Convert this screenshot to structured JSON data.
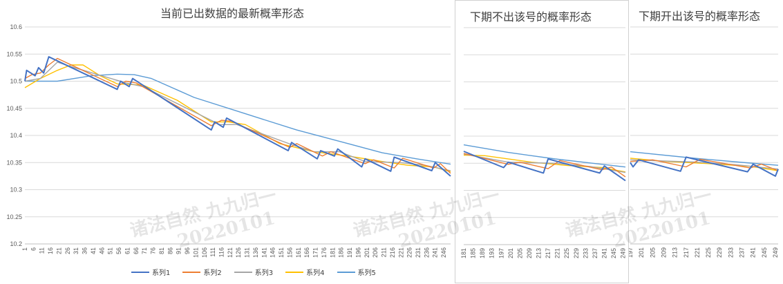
{
  "colors": {
    "series": [
      "#4472C4",
      "#ED7D31",
      "#A5A5A5",
      "#FFC000",
      "#5B9BD5"
    ],
    "grid": "#d9d9d9",
    "axis": "#bfbfbf"
  },
  "panels": [
    {
      "title": "当前已出数据的最新概率形态"
    },
    {
      "title": "下期不出该号的概率形态"
    },
    {
      "title": "下期开出该号的概率形态"
    }
  ],
  "watermark": {
    "text1": "诸法自然 九九归一",
    "text2": "20220101"
  },
  "chart_data": [
    {
      "type": "line",
      "title": "当前已出数据的最新概率形态",
      "ylim": [
        10.2,
        10.6
      ],
      "yticks": [
        10.2,
        10.25,
        10.3,
        10.35,
        10.4,
        10.45,
        10.5,
        10.55,
        10.6
      ],
      "xlim": [
        1,
        250
      ],
      "xticks": [
        1,
        6,
        11,
        16,
        21,
        26,
        31,
        36,
        41,
        46,
        51,
        56,
        61,
        66,
        71,
        76,
        81,
        86,
        91,
        96,
        101,
        106,
        111,
        116,
        121,
        126,
        131,
        136,
        141,
        146,
        151,
        156,
        161,
        166,
        171,
        176,
        181,
        186,
        191,
        196,
        201,
        206,
        211,
        216,
        221,
        226,
        231,
        236,
        241,
        246
      ],
      "legend": [
        "系列1",
        "系列2",
        "系列3",
        "系列4",
        "系列5"
      ],
      "series": [
        {
          "name": "系列1",
          "points": [
            [
              1,
              10.5
            ],
            [
              2,
              10.52
            ],
            [
              7,
              10.51
            ],
            [
              9,
              10.525
            ],
            [
              12,
              10.515
            ],
            [
              15,
              10.545
            ],
            [
              55,
              10.485
            ],
            [
              57,
              10.5
            ],
            [
              62,
              10.49
            ],
            [
              64,
              10.505
            ],
            [
              110,
              10.41
            ],
            [
              112,
              10.425
            ],
            [
              117,
              10.415
            ],
            [
              119,
              10.432
            ],
            [
              155,
              10.372
            ],
            [
              157,
              10.387
            ],
            [
              172,
              10.357
            ],
            [
              174,
              10.372
            ],
            [
              182,
              10.362
            ],
            [
              184,
              10.375
            ],
            [
              198,
              10.342
            ],
            [
              200,
              10.357
            ],
            [
              215,
              10.334
            ],
            [
              217,
              10.36
            ],
            [
              239,
              10.335
            ],
            [
              241,
              10.35
            ],
            [
              250,
              10.325
            ]
          ]
        },
        {
          "name": "系列2",
          "points": [
            [
              1,
              10.505
            ],
            [
              5,
              10.512
            ],
            [
              10,
              10.515
            ],
            [
              15,
              10.53
            ],
            [
              20,
              10.542
            ],
            [
              55,
              10.49
            ],
            [
              60,
              10.5
            ],
            [
              66,
              10.497
            ],
            [
              110,
              10.418
            ],
            [
              116,
              10.428
            ],
            [
              122,
              10.426
            ],
            [
              156,
              10.378
            ],
            [
              160,
              10.385
            ],
            [
              175,
              10.362
            ],
            [
              180,
              10.37
            ],
            [
              200,
              10.348
            ],
            [
              205,
              10.355
            ],
            [
              217,
              10.34
            ],
            [
              222,
              10.358
            ],
            [
              240,
              10.34
            ],
            [
              244,
              10.348
            ],
            [
              250,
              10.33
            ]
          ]
        },
        {
          "name": "系列3",
          "points": [
            [
              1,
              10.5
            ],
            [
              10,
              10.505
            ],
            [
              20,
              10.535
            ],
            [
              30,
              10.525
            ],
            [
              60,
              10.497
            ],
            [
              70,
              10.49
            ],
            [
              115,
              10.42
            ],
            [
              125,
              10.42
            ],
            [
              158,
              10.382
            ],
            [
              170,
              10.37
            ],
            [
              185,
              10.37
            ],
            [
              200,
              10.352
            ],
            [
              220,
              10.35
            ],
            [
              235,
              10.345
            ],
            [
              250,
              10.335
            ]
          ]
        },
        {
          "name": "系列4",
          "points": [
            [
              1,
              10.488
            ],
            [
              10,
              10.505
            ],
            [
              20,
              10.52
            ],
            [
              28,
              10.53
            ],
            [
              35,
              10.53
            ],
            [
              45,
              10.51
            ],
            [
              55,
              10.495
            ],
            [
              70,
              10.493
            ],
            [
              90,
              10.465
            ],
            [
              110,
              10.425
            ],
            [
              120,
              10.425
            ],
            [
              130,
              10.42
            ],
            [
              150,
              10.385
            ],
            [
              170,
              10.37
            ],
            [
              190,
              10.362
            ],
            [
              210,
              10.352
            ],
            [
              225,
              10.345
            ],
            [
              240,
              10.342
            ],
            [
              250,
              10.333
            ]
          ]
        },
        {
          "name": "系列5",
          "points": [
            [
              1,
              10.5
            ],
            [
              20,
              10.5
            ],
            [
              40,
              10.51
            ],
            [
              55,
              10.513
            ],
            [
              65,
              10.512
            ],
            [
              75,
              10.505
            ],
            [
              100,
              10.47
            ],
            [
              130,
              10.44
            ],
            [
              160,
              10.41
            ],
            [
              190,
              10.385
            ],
            [
              210,
              10.368
            ],
            [
              230,
              10.357
            ],
            [
              250,
              10.347
            ]
          ]
        }
      ]
    },
    {
      "type": "line",
      "title": "下期不出该号的概率形态",
      "ylim": [
        10.2,
        10.6
      ],
      "xlim": [
        181,
        250
      ],
      "xticks": [
        181,
        185,
        189,
        193,
        197,
        201,
        205,
        209,
        213,
        217,
        221,
        225,
        229,
        233,
        237,
        241,
        245,
        249
      ],
      "series": [
        {
          "name": "系列1",
          "points": [
            [
              181,
              10.372
            ],
            [
              198,
              10.342
            ],
            [
              200,
              10.352
            ],
            [
              215,
              10.332
            ],
            [
              217,
              10.358
            ],
            [
              239,
              10.332
            ],
            [
              241,
              10.345
            ],
            [
              250,
              10.318
            ]
          ]
        },
        {
          "name": "系列2",
          "points": [
            [
              181,
              10.368
            ],
            [
              200,
              10.348
            ],
            [
              205,
              10.352
            ],
            [
              217,
              10.34
            ],
            [
              222,
              10.355
            ],
            [
              240,
              10.338
            ],
            [
              244,
              10.343
            ],
            [
              250,
              10.325
            ]
          ]
        },
        {
          "name": "系列3",
          "points": [
            [
              181,
              10.367
            ],
            [
              200,
              10.352
            ],
            [
              220,
              10.35
            ],
            [
              235,
              10.344
            ],
            [
              250,
              10.333
            ]
          ]
        },
        {
          "name": "系列4",
          "points": [
            [
              181,
              10.365
            ],
            [
              190,
              10.364
            ],
            [
              210,
              10.352
            ],
            [
              225,
              10.346
            ],
            [
              240,
              10.342
            ],
            [
              250,
              10.334
            ]
          ]
        },
        {
          "name": "系列5",
          "points": [
            [
              181,
              10.384
            ],
            [
              200,
              10.37
            ],
            [
              220,
              10.358
            ],
            [
              240,
              10.348
            ],
            [
              250,
              10.343
            ]
          ]
        }
      ]
    },
    {
      "type": "line",
      "title": "下期开出该号的概率形态",
      "ylim": [
        10.2,
        10.6
      ],
      "xlim": [
        197,
        250
      ],
      "xticks": [
        197,
        201,
        205,
        209,
        213,
        217,
        221,
        225,
        229,
        233,
        237,
        241,
        245,
        249
      ],
      "series": [
        {
          "name": "系列1",
          "points": [
            [
              197,
              10.35
            ],
            [
              198,
              10.342
            ],
            [
              200,
              10.355
            ],
            [
              215,
              10.334
            ],
            [
              217,
              10.36
            ],
            [
              239,
              10.333
            ],
            [
              241,
              10.347
            ],
            [
              249,
              10.325
            ],
            [
              250,
              10.338
            ]
          ]
        },
        {
          "name": "系列2",
          "points": [
            [
              197,
              10.352
            ],
            [
              205,
              10.355
            ],
            [
              217,
              10.342
            ],
            [
              222,
              10.356
            ],
            [
              240,
              10.34
            ],
            [
              244,
              10.347
            ],
            [
              250,
              10.335
            ]
          ]
        },
        {
          "name": "系列3",
          "points": [
            [
              197,
              10.355
            ],
            [
              220,
              10.351
            ],
            [
              235,
              10.346
            ],
            [
              250,
              10.338
            ]
          ]
        },
        {
          "name": "系列4",
          "points": [
            [
              197,
              10.358
            ],
            [
              210,
              10.352
            ],
            [
              225,
              10.348
            ],
            [
              240,
              10.343
            ],
            [
              250,
              10.335
            ]
          ]
        },
        {
          "name": "系列5",
          "points": [
            [
              197,
              10.37
            ],
            [
              220,
              10.358
            ],
            [
              240,
              10.349
            ],
            [
              250,
              10.345
            ]
          ]
        }
      ]
    }
  ]
}
